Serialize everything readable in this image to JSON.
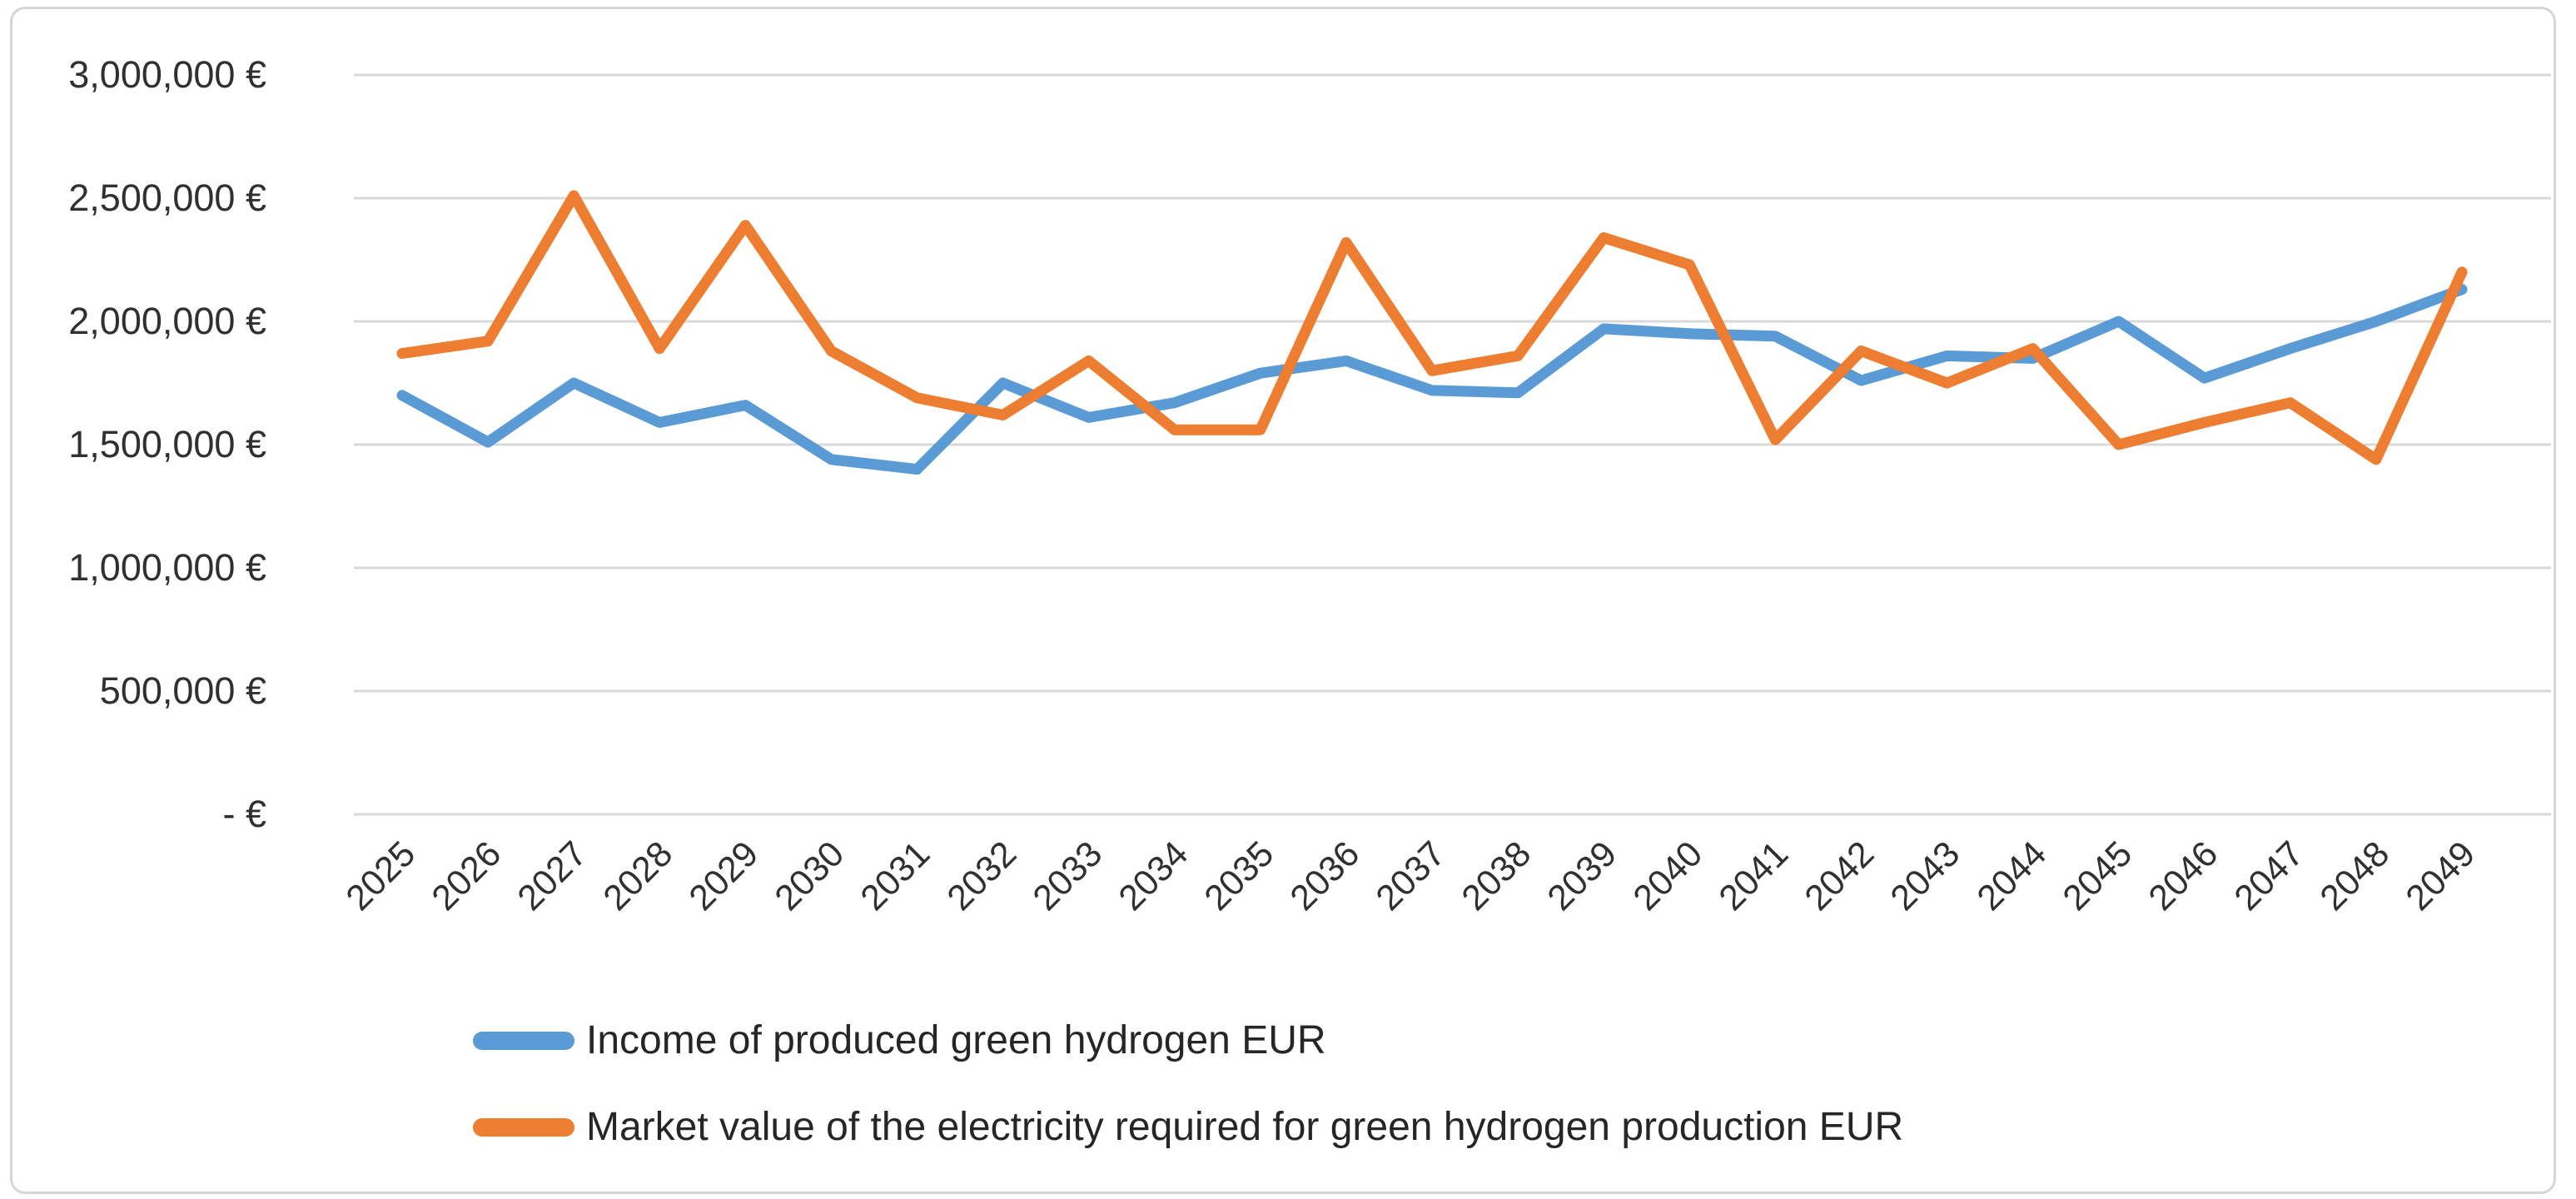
{
  "chart_data": {
    "type": "line",
    "title": "",
    "x": [
      2025,
      2026,
      2027,
      2028,
      2029,
      2030,
      2031,
      2032,
      2033,
      2034,
      2035,
      2036,
      2037,
      2038,
      2039,
      2040,
      2041,
      2042,
      2043,
      2044,
      2045,
      2046,
      2047,
      2048,
      2049
    ],
    "series": [
      {
        "name": "Income of produced green hydrogen EUR",
        "color": "#5B9BD5",
        "values": [
          1700000,
          1510000,
          1750000,
          1590000,
          1660000,
          1440000,
          1400000,
          1750000,
          1610000,
          1670000,
          1790000,
          1840000,
          1720000,
          1710000,
          1970000,
          1950000,
          1940000,
          1760000,
          1860000,
          1850000,
          2000000,
          1770000,
          1890000,
          2000000,
          2130000
        ]
      },
      {
        "name": "Market value of the electricity required for green hydrogen production EUR",
        "color": "#ED7D31",
        "values": [
          1870000,
          1920000,
          2510000,
          1890000,
          2390000,
          1880000,
          1690000,
          1620000,
          1840000,
          1560000,
          1560000,
          2320000,
          1800000,
          1860000,
          2340000,
          2230000,
          1520000,
          1880000,
          1750000,
          1890000,
          1500000,
          1590000,
          1670000,
          1440000,
          2200000
        ]
      }
    ],
    "ylim": [
      0,
      3000000
    ],
    "ytick_step": 500000,
    "ytick_labels": [
      "- €",
      "500,000 €",
      "1,000,000 €",
      "1,500,000 €",
      "2,000,000 €",
      "2,500,000 €",
      "3,000,000 €"
    ],
    "xlabel": "",
    "ylabel": "",
    "grid": true,
    "gridline_color": "#d9d9d9",
    "legend_position": "bottom-left"
  }
}
